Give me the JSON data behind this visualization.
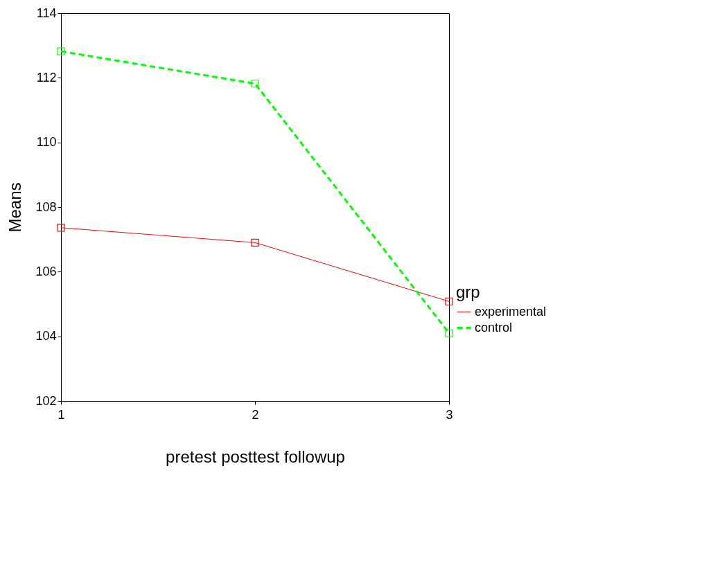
{
  "chart_data": {
    "type": "line",
    "xlabel": "pretest                              posttest                              followup",
    "ylabel": "Means",
    "legend_title": "grp",
    "x": [
      1,
      2,
      3
    ],
    "xlim": [
      1,
      3
    ],
    "xticks": [
      1,
      2,
      3
    ],
    "ylim": [
      102,
      114
    ],
    "yticks": [
      102,
      104,
      106,
      108,
      110,
      112,
      114
    ],
    "grid": false,
    "legend": "bottom right",
    "marker": "square",
    "series": [
      {
        "name": "experimental",
        "color": "#ff0000",
        "line_style": "solid",
        "values": [
          107.36,
          106.9,
          105.08
        ]
      },
      {
        "name": "control",
        "color": "#00ff00",
        "line_style": "dashed",
        "values": [
          112.82,
          111.82,
          104.1
        ]
      }
    ]
  }
}
